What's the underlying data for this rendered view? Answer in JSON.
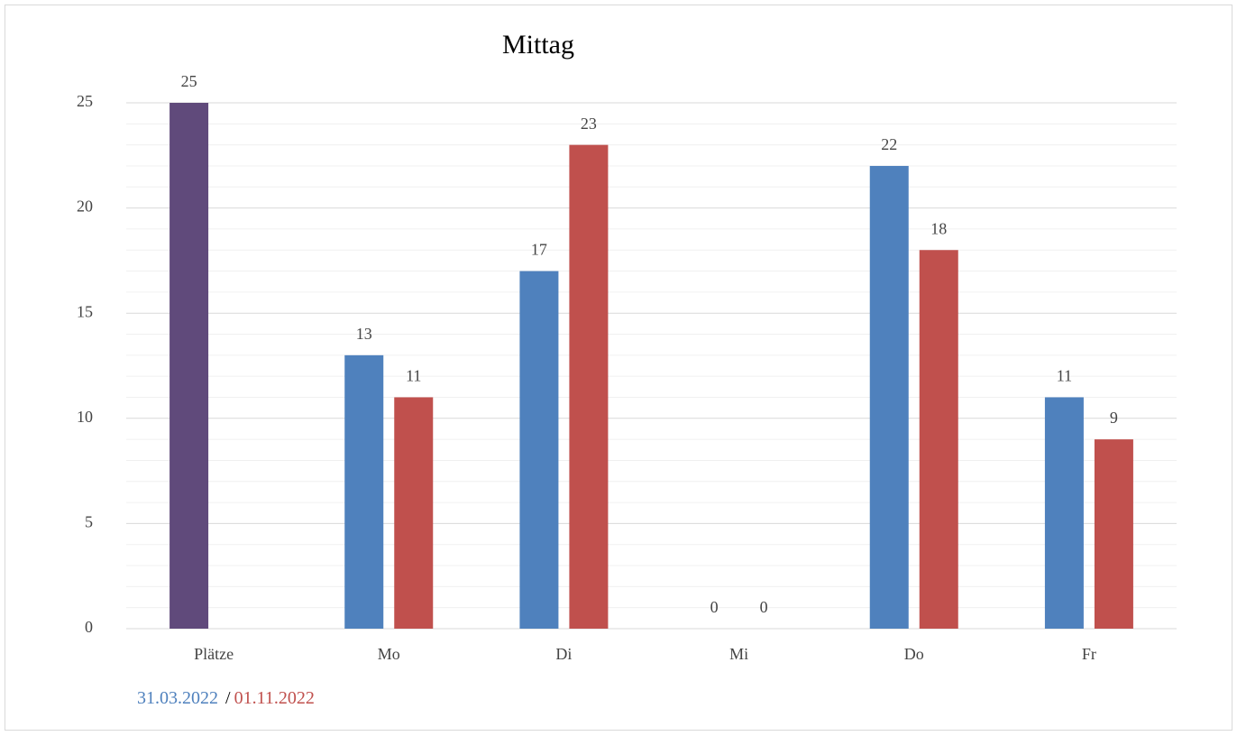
{
  "chart_data": {
    "type": "bar",
    "title": "Mittag",
    "categories": [
      "Plätze",
      "Mo",
      "Di",
      "Mi",
      "Do",
      "Fr"
    ],
    "series": [
      {
        "name": "31.03.2022",
        "color": "#4f81bd",
        "colors": [
          "#604a7b",
          "#4f81bd",
          "#4f81bd",
          "#4f81bd",
          "#4f81bd",
          "#4f81bd"
        ],
        "values": [
          25,
          13,
          17,
          0,
          22,
          11
        ]
      },
      {
        "name": "01.11.2022",
        "color": "#c0504d",
        "values": [
          null,
          11,
          23,
          0,
          18,
          9
        ]
      }
    ],
    "legend_separator": "/",
    "ylim": [
      0,
      25
    ],
    "yticks": [
      0,
      5,
      10,
      15,
      20,
      25
    ],
    "minor_yticks": [
      1,
      2,
      3,
      4,
      6,
      7,
      8,
      9,
      11,
      12,
      13,
      14,
      16,
      17,
      18,
      19,
      21,
      22,
      23,
      24
    ],
    "grid": true,
    "legend_position": "bottom-left"
  }
}
